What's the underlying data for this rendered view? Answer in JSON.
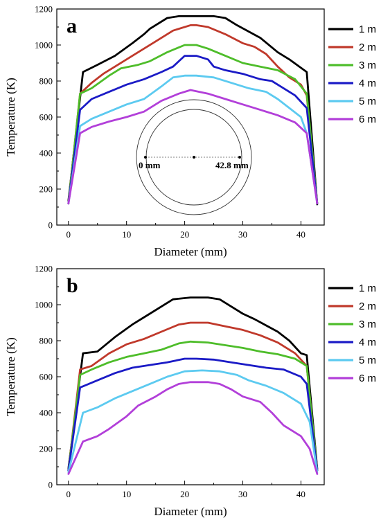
{
  "chart_data": [
    {
      "type": "line",
      "panel_label": "a",
      "xlabel": "Diameter (mm)",
      "ylabel": "Temperature (K)",
      "xlim": [
        -2,
        44
      ],
      "ylim": [
        0,
        1200
      ],
      "xticks": [
        0,
        10,
        20,
        30,
        40
      ],
      "yticks": [
        0,
        200,
        400,
        600,
        800,
        1000,
        1200
      ],
      "legend_position": "right",
      "inset": {
        "left_label": "0 mm",
        "right_label": "42.8 mm"
      },
      "series": [
        {
          "name": "1 m",
          "color": "#000000",
          "x": [
            0,
            2.5,
            5,
            8,
            11,
            13,
            14,
            17,
            19,
            22,
            25,
            27,
            29,
            33,
            36,
            38,
            41,
            42.8
          ],
          "y": [
            135,
            850,
            890,
            940,
            1010,
            1060,
            1090,
            1150,
            1160,
            1160,
            1160,
            1150,
            1110,
            1040,
            960,
            920,
            850,
            115
          ]
        },
        {
          "name": "2 m",
          "color": "#c0392b",
          "x": [
            0,
            2,
            4,
            6,
            8,
            11,
            13,
            15,
            18,
            21,
            22,
            24,
            27,
            30,
            32,
            34,
            36,
            38,
            40,
            41,
            42.8
          ],
          "y": [
            120,
            730,
            790,
            840,
            880,
            940,
            980,
            1020,
            1080,
            1110,
            1110,
            1100,
            1060,
            1010,
            990,
            950,
            880,
            820,
            780,
            720,
            120
          ]
        },
        {
          "name": "3 m",
          "color": "#4ebd2a",
          "x": [
            0,
            2,
            4,
            7,
            9,
            12,
            14,
            17,
            20,
            22,
            24,
            27,
            30,
            33,
            36,
            39,
            41,
            42.8
          ],
          "y": [
            120,
            730,
            760,
            830,
            870,
            890,
            910,
            960,
            1000,
            1000,
            980,
            940,
            900,
            880,
            860,
            810,
            730,
            120
          ]
        },
        {
          "name": "4 m",
          "color": "#1b1bc6",
          "x": [
            0,
            2,
            4,
            7,
            10,
            13,
            16,
            18,
            19,
            20,
            22,
            24,
            25,
            27,
            30,
            33,
            35,
            37,
            39,
            41,
            42.8
          ],
          "y": [
            120,
            640,
            700,
            740,
            780,
            810,
            850,
            880,
            910,
            940,
            940,
            920,
            880,
            860,
            840,
            810,
            800,
            760,
            720,
            650,
            120
          ]
        },
        {
          "name": "5 m",
          "color": "#5ccaf0",
          "x": [
            0,
            2,
            4,
            7,
            10,
            13,
            16,
            18,
            20,
            22,
            25,
            28,
            31,
            34,
            36,
            38,
            40,
            41,
            42.8
          ],
          "y": [
            120,
            550,
            590,
            630,
            670,
            700,
            770,
            820,
            830,
            830,
            820,
            790,
            760,
            740,
            700,
            650,
            600,
            510,
            120
          ]
        },
        {
          "name": "6 m",
          "color": "#b23fd9",
          "x": [
            0,
            2,
            4,
            7,
            10,
            13,
            16,
            19,
            21,
            24,
            27,
            30,
            33,
            36,
            39,
            41,
            42.8
          ],
          "y": [
            120,
            510,
            545,
            575,
            600,
            630,
            690,
            730,
            750,
            730,
            700,
            670,
            640,
            610,
            570,
            510,
            120
          ]
        }
      ]
    },
    {
      "type": "line",
      "panel_label": "b",
      "xlabel": "Diameter (mm)",
      "ylabel": "Temperature (K)",
      "xlim": [
        -2,
        44
      ],
      "ylim": [
        0,
        1200
      ],
      "xticks": [
        0,
        10,
        20,
        30,
        40
      ],
      "yticks": [
        0,
        200,
        400,
        600,
        800,
        1000,
        1200
      ],
      "legend_position": "right",
      "series": [
        {
          "name": "1 m",
          "color": "#000000",
          "x": [
            0,
            2.5,
            5,
            8,
            11,
            14,
            18,
            21,
            24,
            26,
            28,
            30,
            32,
            36,
            38,
            40,
            41,
            42.8
          ],
          "y": [
            90,
            730,
            740,
            820,
            890,
            950,
            1030,
            1040,
            1040,
            1030,
            990,
            950,
            920,
            850,
            800,
            730,
            720,
            90
          ]
        },
        {
          "name": "2 m",
          "color": "#c0392b",
          "x": [
            0,
            2,
            4,
            7,
            10,
            13,
            16,
            19,
            21,
            24,
            27,
            30,
            33,
            36,
            39,
            41,
            42.8
          ],
          "y": [
            80,
            640,
            660,
            730,
            780,
            810,
            850,
            890,
            900,
            900,
            880,
            860,
            830,
            790,
            730,
            660,
            80
          ]
        },
        {
          "name": "3 m",
          "color": "#4ebd2a",
          "x": [
            0,
            2,
            4,
            7,
            10,
            13,
            16,
            19,
            21,
            24,
            27,
            30,
            33,
            36,
            39,
            41,
            42.8
          ],
          "y": [
            80,
            610,
            640,
            680,
            710,
            730,
            750,
            785,
            795,
            790,
            775,
            760,
            740,
            725,
            700,
            660,
            80
          ]
        },
        {
          "name": "4 m",
          "color": "#1b1bc6",
          "x": [
            0,
            2,
            5,
            8,
            11,
            14,
            17,
            20,
            22,
            25,
            28,
            31,
            34,
            37,
            40,
            41,
            42.8
          ],
          "y": [
            80,
            540,
            580,
            620,
            650,
            665,
            680,
            700,
            700,
            695,
            680,
            665,
            650,
            640,
            600,
            560,
            80
          ]
        },
        {
          "name": "5 m",
          "color": "#5ccaf0",
          "x": [
            0,
            2.5,
            5,
            8,
            11,
            14,
            17,
            20,
            23,
            26,
            29,
            31,
            34,
            37,
            40,
            41.5,
            42.8
          ],
          "y": [
            70,
            400,
            430,
            480,
            520,
            560,
            600,
            630,
            635,
            630,
            610,
            580,
            550,
            510,
            450,
            350,
            70
          ]
        },
        {
          "name": "6 m",
          "color": "#b23fd9",
          "x": [
            0,
            2.5,
            5,
            7,
            10,
            12,
            15,
            17,
            19,
            21,
            24,
            26,
            28,
            30,
            33,
            35,
            37,
            40,
            41.5,
            42.8
          ],
          "y": [
            60,
            240,
            270,
            310,
            380,
            440,
            490,
            530,
            560,
            570,
            570,
            560,
            530,
            490,
            460,
            400,
            330,
            270,
            200,
            60
          ]
        }
      ]
    }
  ]
}
